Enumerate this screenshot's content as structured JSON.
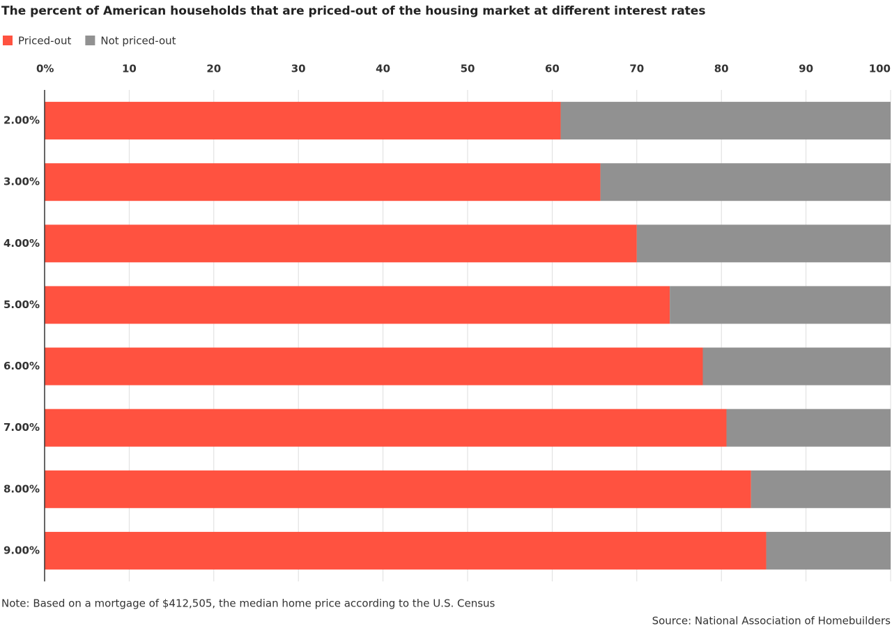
{
  "chart_data": {
    "type": "bar",
    "orientation": "horizontal",
    "stacked": true,
    "title": "The percent of American households that are priced-out of the housing market at different interest rates",
    "categories": [
      "2.00%",
      "3.00%",
      "4.00%",
      "5.00%",
      "6.00%",
      "7.00%",
      "8.00%",
      "9.00%"
    ],
    "series": [
      {
        "name": "Priced-out",
        "color": "#ff5240",
        "values": [
          61,
          65.7,
          70,
          73.9,
          77.8,
          80.6,
          83.5,
          85.3
        ]
      },
      {
        "name": "Not priced-out",
        "color": "#919191",
        "values": [
          39,
          34.3,
          30,
          26.1,
          22.2,
          19.4,
          16.5,
          14.7
        ]
      }
    ],
    "xlim": [
      0,
      100
    ],
    "xticks": [
      {
        "value": 0,
        "label": "0%"
      },
      10,
      20,
      30,
      40,
      50,
      60,
      70,
      80,
      90,
      100
    ],
    "grid": true,
    "note": "Note: Based on a mortgage of $412,505, the median home price according to the U.S. Census",
    "source": "Source: National Association of Homebuilders"
  }
}
